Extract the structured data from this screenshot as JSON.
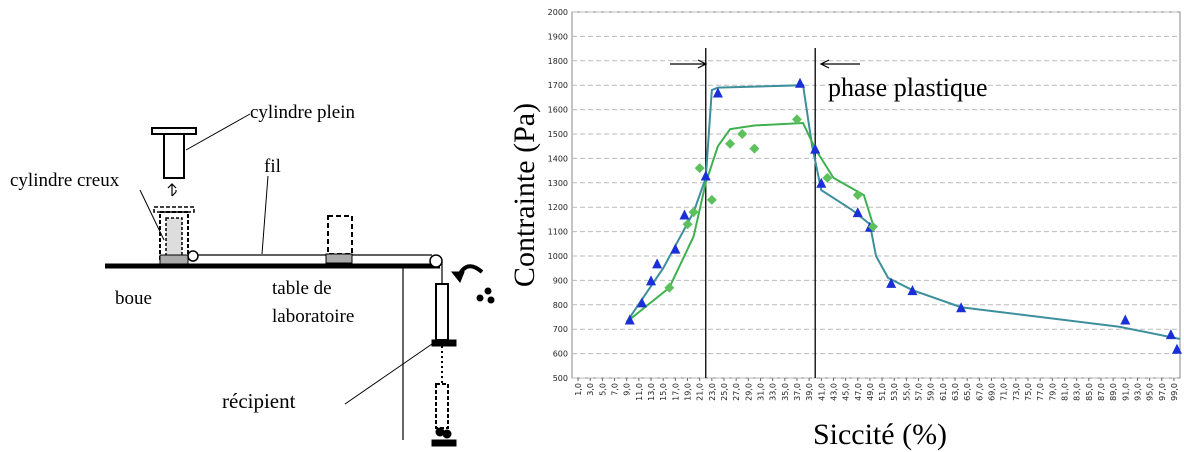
{
  "diagram": {
    "labels": {
      "cylindre_plein": "cylindre plein",
      "cylindre_creux": "cylindre creux",
      "fil": "fil",
      "boue": "boue",
      "table_line1": "table de",
      "table_line2": "laboratoire",
      "recipient": "récipient"
    }
  },
  "chart_data": {
    "type": "scatter",
    "y_label": "Contrainte (Pa)",
    "x_label": "Siccité (%)",
    "annotation": "phase plastique",
    "xlim": [
      0,
      100
    ],
    "ylim": [
      500,
      2000
    ],
    "grid": true,
    "yticks": [
      500,
      600,
      700,
      800,
      900,
      1000,
      1100,
      1200,
      1300,
      1400,
      1500,
      1600,
      1700,
      1800,
      1900,
      2000
    ],
    "xticks": [
      {
        "value": 1,
        "label": "1,0"
      },
      {
        "value": 3,
        "label": "3,0"
      },
      {
        "value": 5,
        "label": "5,0"
      },
      {
        "value": 7,
        "label": "7,0"
      },
      {
        "value": 9,
        "label": "9,0"
      },
      {
        "value": 11,
        "label": "11,0"
      },
      {
        "value": 13,
        "label": "13,0"
      },
      {
        "value": 15,
        "label": "15,0"
      },
      {
        "value": 17,
        "label": "17,0"
      },
      {
        "value": 19,
        "label": "19,0"
      },
      {
        "value": 21,
        "label": "21,0"
      },
      {
        "value": 23,
        "label": "23,0"
      },
      {
        "value": 25,
        "label": "25,0"
      },
      {
        "value": 27,
        "label": "27,0"
      },
      {
        "value": 29,
        "label": "29,0"
      },
      {
        "value": 31,
        "label": "31,0"
      },
      {
        "value": 33,
        "label": "33,0"
      },
      {
        "value": 35,
        "label": "35,0"
      },
      {
        "value": 37,
        "label": "37,0"
      },
      {
        "value": 39,
        "label": "39,0"
      },
      {
        "value": 41,
        "label": "41,0"
      },
      {
        "value": 43,
        "label": "43,0"
      },
      {
        "value": 45,
        "label": "45,0"
      },
      {
        "value": 47,
        "label": "47,0"
      },
      {
        "value": 49,
        "label": "49,0"
      },
      {
        "value": 51,
        "label": "51,0"
      },
      {
        "value": 53,
        "label": "53,0"
      },
      {
        "value": 55,
        "label": "55,0"
      },
      {
        "value": 57,
        "label": "57,0"
      },
      {
        "value": 59,
        "label": "59,0"
      },
      {
        "value": 61,
        "label": "61,0"
      },
      {
        "value": 63,
        "label": "63,0"
      },
      {
        "value": 65,
        "label": "65,0"
      },
      {
        "value": 67,
        "label": "67,0"
      },
      {
        "value": 69,
        "label": "69,0"
      },
      {
        "value": 71,
        "label": "71,0"
      },
      {
        "value": 73,
        "label": "73,0"
      },
      {
        "value": 75,
        "label": "75,0"
      },
      {
        "value": 77,
        "label": "77,0"
      },
      {
        "value": 79,
        "label": "79,0"
      },
      {
        "value": 81,
        "label": "81,0"
      },
      {
        "value": 83,
        "label": "83,0"
      },
      {
        "value": 85,
        "label": "85,0"
      },
      {
        "value": 87,
        "label": "87,0"
      },
      {
        "value": 89,
        "label": "89,0"
      },
      {
        "value": 91,
        "label": "91,0"
      },
      {
        "value": 93,
        "label": "93,0"
      },
      {
        "value": 95,
        "label": "95,0"
      },
      {
        "value": 97,
        "label": "97,0"
      },
      {
        "value": 99,
        "label": "99,0"
      }
    ],
    "vertical_lines": [
      22,
      40
    ],
    "series": [
      {
        "color": "#1a2fd6",
        "marker": "triangle",
        "x": [
          9.5,
          11.5,
          13,
          14,
          17,
          18.5,
          22,
          24,
          37.5,
          40,
          41,
          47,
          49,
          52.5,
          56,
          64,
          91,
          98.5,
          99.5
        ],
        "values": [
          740,
          810,
          900,
          970,
          1030,
          1170,
          1330,
          1670,
          1710,
          1440,
          1300,
          1180,
          1120,
          890,
          860,
          790,
          740,
          680,
          620
        ]
      },
      {
        "color": "#5cc05c",
        "marker": "diamond",
        "x": [
          16,
          19,
          20,
          21,
          23,
          26,
          28,
          30,
          37,
          42,
          47,
          49.5
        ],
        "values": [
          870,
          1130,
          1180,
          1360,
          1230,
          1460,
          1500,
          1440,
          1560,
          1320,
          1250,
          1120
        ]
      }
    ],
    "lines": [
      {
        "color": "#3d8f9c",
        "x": [
          9,
          15,
          20,
          22,
          23,
          24,
          38,
          39.5,
          41,
          46,
          49,
          50,
          52,
          56,
          64,
          90,
          100
        ],
        "values": [
          730,
          950,
          1180,
          1320,
          1680,
          1690,
          1700,
          1450,
          1270,
          1190,
          1130,
          1000,
          910,
          860,
          790,
          710,
          660
        ]
      },
      {
        "color": "#3fb04f",
        "x": [
          9,
          16,
          20,
          22,
          24,
          26,
          30,
          38,
          40,
          43,
          48,
          49.5
        ],
        "values": [
          730,
          870,
          1080,
          1300,
          1450,
          1520,
          1535,
          1545,
          1440,
          1320,
          1250,
          1130
        ]
      }
    ]
  }
}
